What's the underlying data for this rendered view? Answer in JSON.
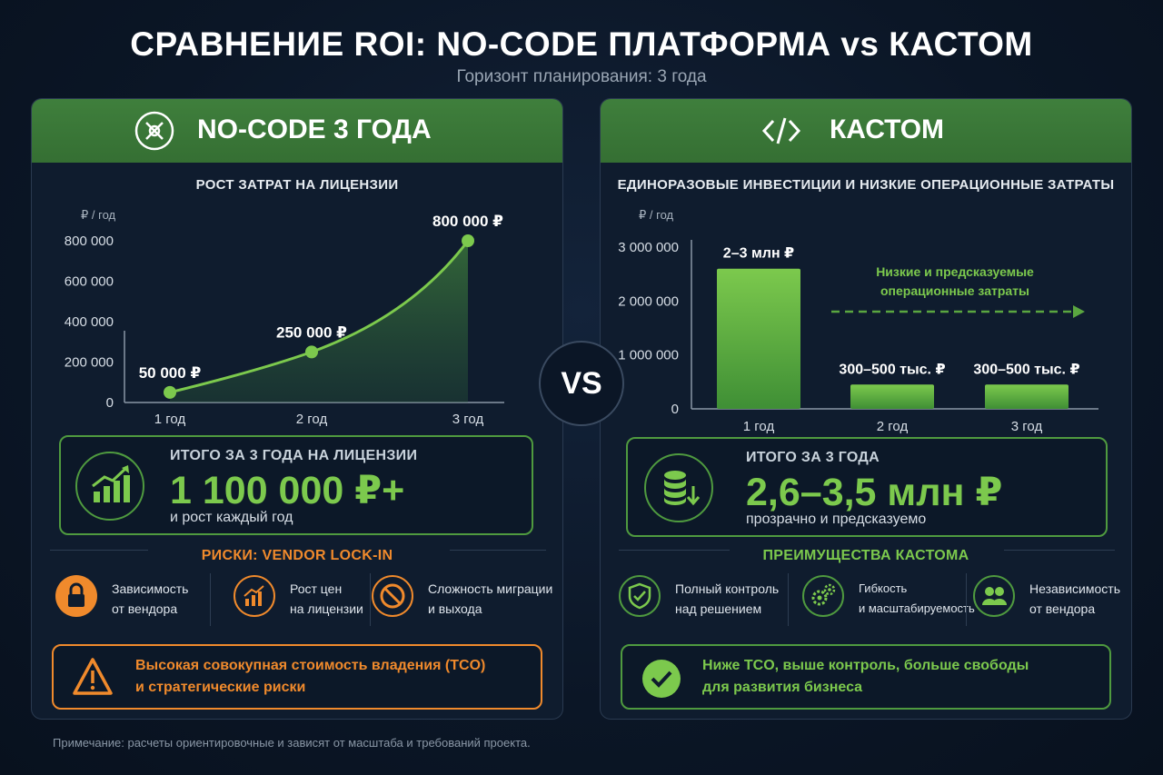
{
  "header": {
    "title": "СРАВНЕНИЕ ROI: NO-CODE ПЛАТФОРМА vs КАСТОМ",
    "subtitle": "Горизонт планирования: 3 года"
  },
  "vs_label": "VS",
  "footnote": "Примечание: расчеты ориентировочные и зависят от масштаба и требований проекта.",
  "colors": {
    "green": "#7cc94d",
    "green_dark": "#3f7f3c",
    "orange": "#f08a2c",
    "background": "#0b1626"
  },
  "left": {
    "header_icon": "no-code-cross-icon",
    "header_title": "NO-CODE 3 ГОДА",
    "total": {
      "icon": "growth-chart-icon",
      "label": "ИТОГО ЗА 3 ГОДА НА ЛИЦЕНЗИИ",
      "value": "1 100 000 ₽+",
      "note": "и рост каждый год"
    },
    "risks": {
      "title": "РИСКИ: VENDOR LOCK-IN",
      "items": [
        {
          "icon": "lock-icon",
          "line1": "Зависимость",
          "line2": "от вендора"
        },
        {
          "icon": "price-growth-icon",
          "line1": "Рост цен",
          "line2": "на лицензии"
        },
        {
          "icon": "no-entry-icon",
          "line1": "Сложность миграции",
          "line2": "и выхода"
        }
      ]
    },
    "callout": {
      "icon": "warning-icon",
      "line1": "Высокая совокупная стоимость владения (TCO)",
      "line2": "и стратегические риски"
    }
  },
  "right": {
    "header_icon": "code-brackets-icon",
    "header_title": "КАСТОМ",
    "arrow_note": {
      "line1": "Низкие и предсказуемые",
      "line2": "операционные затраты"
    },
    "total": {
      "icon": "database-down-icon",
      "label": "ИТОГО ЗА 3 ГОДА",
      "value": "2,6–3,5 млн ₽",
      "note": "прозрачно и предсказуемо"
    },
    "benefits": {
      "title": "ПРЕИМУЩЕСТВА КАСТОМА",
      "items": [
        {
          "icon": "shield-check-icon",
          "line1": "Полный контроль",
          "line2": "над решением"
        },
        {
          "icon": "gears-icon",
          "line1": "Гибкость",
          "line2": "и масштабируемость"
        },
        {
          "icon": "users-icon",
          "line1": "Независимость",
          "line2": "от вендора"
        }
      ]
    },
    "callout": {
      "icon": "check-circle-icon",
      "line1": "Ниже TCO, выше контроль, больше свободы",
      "line2": "для развития бизнеса"
    }
  },
  "chart_data": [
    {
      "type": "area",
      "title": "РОСТ ЗАТРАТ НА ЛИЦЕНЗИИ",
      "ylabel": "₽ / год",
      "xlabel": "",
      "categories": [
        "1 год",
        "2 год",
        "3 год"
      ],
      "values": [
        50000,
        250000,
        800000
      ],
      "data_labels": [
        "50 000 ₽",
        "250 000 ₽",
        "800 000 ₽"
      ],
      "ylim": [
        0,
        800000
      ],
      "yticks": [
        0,
        200000,
        400000,
        600000,
        800000
      ],
      "ytick_labels": [
        "0",
        "200 000",
        "400 000",
        "600 000",
        "800 000"
      ],
      "grid": false,
      "color": "#7cc94d"
    },
    {
      "type": "bar",
      "title": "ЕДИНОРАЗОВЫЕ ИНВЕСТИЦИИ И НИЗКИЕ ОПЕРАЦИОННЫЕ ЗАТРАТЫ",
      "ylabel": "₽ / год",
      "xlabel": "",
      "categories": [
        "1 год",
        "2 год",
        "3 год"
      ],
      "values": [
        2600000,
        450000,
        450000
      ],
      "data_labels": [
        "2–3 млн ₽",
        "300–500 тыс. ₽",
        "300–500 тыс. ₽"
      ],
      "ylim": [
        0,
        3000000
      ],
      "yticks": [
        0,
        1000000,
        2000000,
        3000000
      ],
      "ytick_labels": [
        "0",
        "1 000 000",
        "2 000 000",
        "3 000 000"
      ],
      "grid": false,
      "color": "#6dbb45"
    }
  ]
}
